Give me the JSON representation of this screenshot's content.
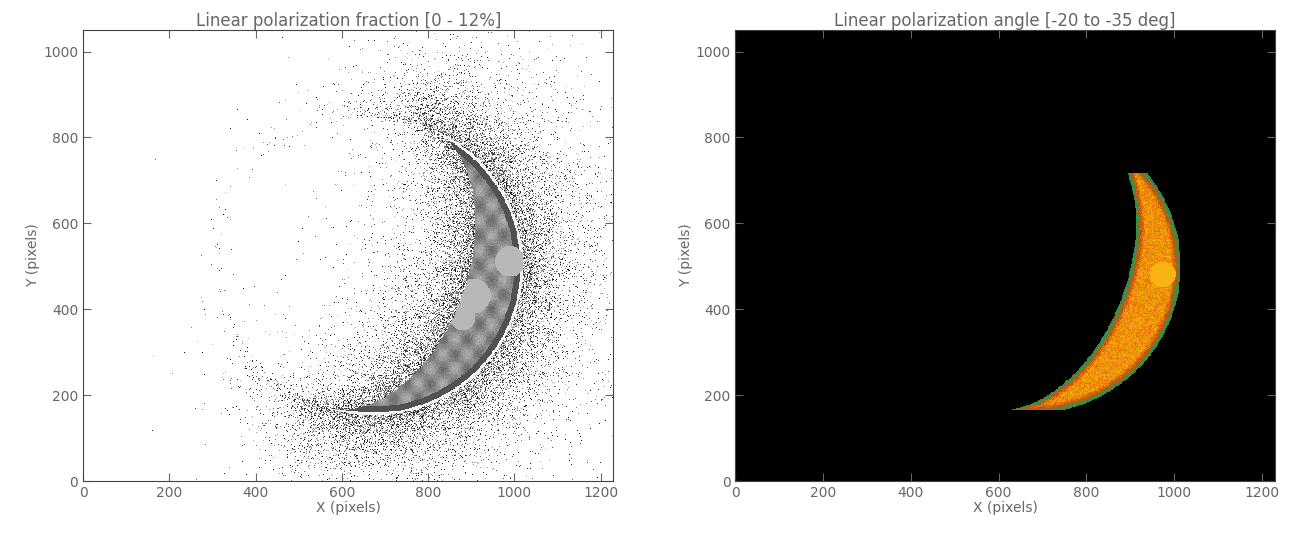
{
  "chart_data": [
    {
      "type": "image",
      "title": "Linear polarization fraction [0 - 12%]",
      "x_label": "X (pixels)",
      "y_label": "Y (pixels)",
      "xlim": [
        0,
        1230
      ],
      "ylim": [
        0,
        1050
      ],
      "xticks": [
        0,
        200,
        400,
        600,
        800,
        1000,
        1200
      ],
      "yticks": [
        0,
        200,
        400,
        600,
        800,
        1000
      ],
      "color_range": [
        0,
        12
      ]
    },
    {
      "type": "image",
      "title": "Linear polarization angle [-20 to -35 deg]",
      "x_label": "X (pixels)",
      "y_label": "Y (pixels)",
      "xlim": [
        0,
        1230
      ],
      "ylim": [
        0,
        1050
      ],
      "xticks": [
        0,
        200,
        400,
        600,
        800,
        1000,
        1200
      ],
      "yticks": [
        0,
        200,
        400,
        600,
        800,
        1000
      ],
      "color_range": [
        -20,
        -35
      ]
    }
  ]
}
